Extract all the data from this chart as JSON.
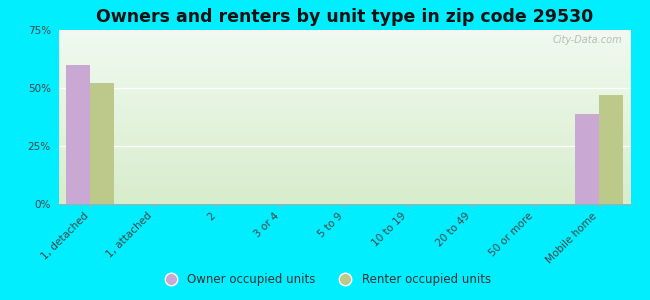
{
  "title": "Owners and renters by unit type in zip code 29530",
  "categories": [
    "1, detached",
    "1, attached",
    "2",
    "3 or 4",
    "5 to 9",
    "10 to 19",
    "20 to 49",
    "50 or more",
    "Mobile home"
  ],
  "owner_values": [
    60,
    0,
    0,
    0,
    0,
    0,
    0,
    0,
    39
  ],
  "renter_values": [
    52,
    0,
    0,
    0,
    0,
    0,
    0,
    0,
    47
  ],
  "owner_color": "#c9a8d4",
  "renter_color": "#bdc98a",
  "background_outer": "#00eeff",
  "background_plot_bottom": "#d8edcc",
  "background_plot_top": "#f0faf0",
  "ylim": [
    0,
    75
  ],
  "yticks": [
    0,
    25,
    50,
    75
  ],
  "ytick_labels": [
    "0%",
    "25%",
    "50%",
    "75%"
  ],
  "bar_width": 0.38,
  "title_fontsize": 12.5,
  "tick_fontsize": 7.5,
  "legend_fontsize": 8.5,
  "watermark": "City-Data.com"
}
